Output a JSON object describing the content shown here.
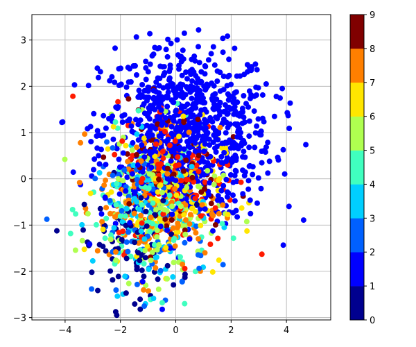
{
  "chart_data": {
    "type": "scatter",
    "title": "",
    "xlabel": "",
    "ylabel": "",
    "xlim": [
      -5.2,
      5.6
    ],
    "ylim": [
      -3.05,
      3.55
    ],
    "x_ticks": [
      -4,
      -2,
      0,
      2,
      4
    ],
    "y_ticks": [
      -3,
      -2,
      -1,
      0,
      1,
      2,
      3
    ],
    "grid": true,
    "colorbar": {
      "min": 0,
      "max": 9,
      "levels": 9,
      "ticks": [
        0,
        1,
        2,
        3,
        4,
        5,
        6,
        7,
        8,
        9
      ],
      "colors": [
        "#00008f",
        "#0000ff",
        "#0060ff",
        "#00cfff",
        "#40ffbf",
        "#afff50",
        "#ffe600",
        "#ff7f00",
        "#ff1a00",
        "#800000"
      ]
    },
    "colormap": "jet",
    "point_count": 1800,
    "clusters": [
      {
        "class_value": 1,
        "center": [
          0.4,
          1.0
        ],
        "spread": [
          1.55,
          0.95
        ],
        "share": 0.5
      },
      {
        "class_value": 0,
        "center": [
          -1.6,
          -1.4
        ],
        "spread": [
          0.9,
          0.7
        ],
        "share": 0.05
      },
      {
        "class_value": 2,
        "center": [
          -0.9,
          -1.0
        ],
        "spread": [
          1.0,
          0.8
        ],
        "share": 0.05
      },
      {
        "class_value": 3,
        "center": [
          -1.0,
          -0.8
        ],
        "spread": [
          1.0,
          0.8
        ],
        "share": 0.05
      },
      {
        "class_value": 4,
        "center": [
          -0.9,
          -0.7
        ],
        "spread": [
          1.1,
          0.8
        ],
        "share": 0.06
      },
      {
        "class_value": 5,
        "center": [
          -0.7,
          -0.6
        ],
        "spread": [
          1.1,
          0.8
        ],
        "share": 0.07
      },
      {
        "class_value": 6,
        "center": [
          -0.5,
          -0.3
        ],
        "spread": [
          1.1,
          0.8
        ],
        "share": 0.07
      },
      {
        "class_value": 7,
        "center": [
          -0.6,
          -0.5
        ],
        "spread": [
          1.1,
          0.8
        ],
        "share": 0.09
      },
      {
        "class_value": 8,
        "center": [
          0.0,
          0.1
        ],
        "spread": [
          1.1,
          0.8
        ],
        "share": 0.07
      },
      {
        "class_value": 9,
        "center": [
          -0.3,
          0.2
        ],
        "spread": [
          1.0,
          0.7
        ],
        "share": 0.05
      }
    ]
  }
}
